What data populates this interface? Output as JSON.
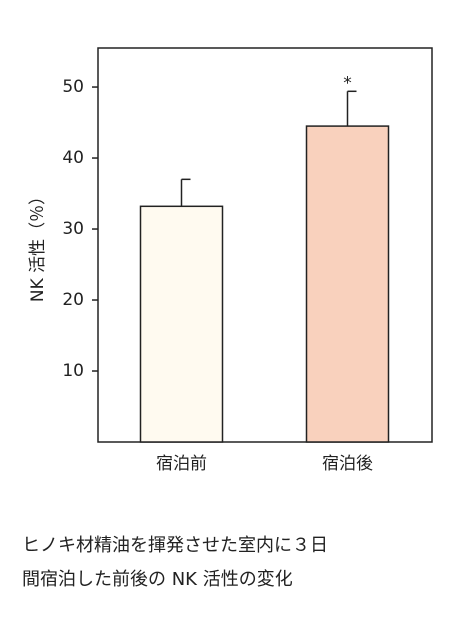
{
  "chart_data": {
    "type": "bar",
    "ylabel": "NK 活性（％）",
    "categories": [
      "宿泊前",
      "宿泊後"
    ],
    "values": [
      33.2,
      44.5
    ],
    "errors": [
      3.8,
      4.9
    ],
    "colors": [
      "#fffaf0",
      "#f9d1bd"
    ],
    "annotation_labels": [
      null,
      "*"
    ],
    "ylim": [
      0,
      55.5
    ],
    "yticks": [
      10,
      20,
      30,
      40,
      50
    ]
  },
  "caption": [
    "ヒノキ材精油を揮発させた室内に３日",
    "間宿泊した前後の NK 活性の変化"
  ]
}
